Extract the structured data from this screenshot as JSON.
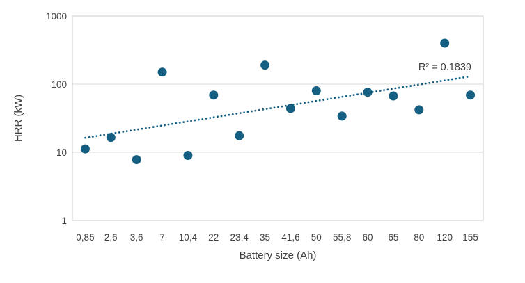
{
  "chart_data": {
    "type": "scatter",
    "title": "",
    "xlabel": "Battery size (Ah)",
    "ylabel": "HRR (kW)",
    "x_axis_type": "categorical",
    "y_axis_type": "log",
    "y_ticks": [
      1000,
      100,
      10,
      1
    ],
    "ylim": [
      1,
      1000
    ],
    "grid": true,
    "legend": false,
    "categories": [
      "0,85",
      "2,6",
      "3,6",
      "7",
      "10,4",
      "22",
      "23,4",
      "35",
      "41,6",
      "50",
      "55,8",
      "60",
      "65",
      "80",
      "120",
      "155"
    ],
    "values": [
      11.2,
      16.5,
      7.8,
      150,
      9,
      69,
      17.5,
      190,
      44,
      80,
      34,
      76,
      67,
      42,
      400,
      69
    ],
    "trendline": {
      "style": "dotted",
      "start_value": 16.3,
      "end_value": 130,
      "r_squared_label": "R² = 0.1839"
    },
    "colors": {
      "marker": "#156082",
      "trendline": "#156082",
      "gridline": "#d9d9d9",
      "border": "#cccccc",
      "text": "#404040"
    }
  }
}
